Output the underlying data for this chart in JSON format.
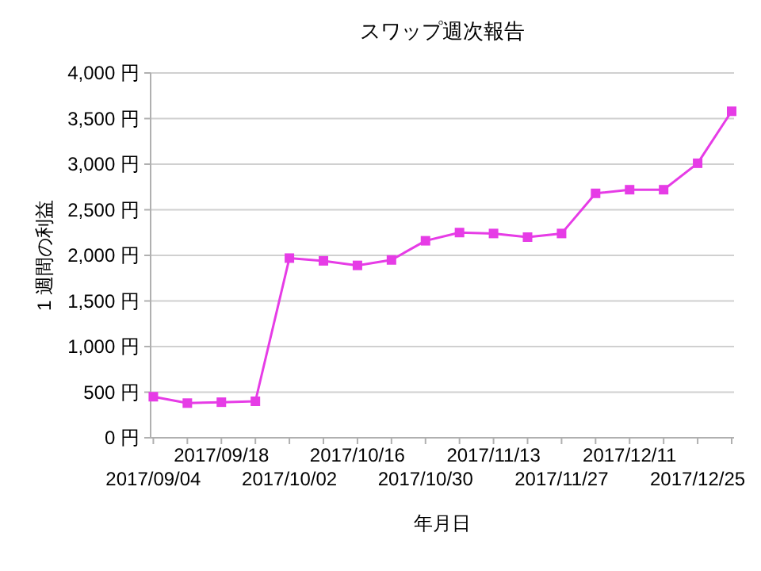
{
  "chart_data": {
    "type": "line",
    "title": "スワップ週次報告",
    "xlabel": "年月日",
    "ylabel": "1 週間の利益",
    "categories": [
      "2017/09/04",
      null,
      "2017/09/18",
      null,
      "2017/10/02",
      null,
      "2017/10/16",
      null,
      "2017/10/30",
      null,
      "2017/11/13",
      null,
      "2017/11/27",
      null,
      "2017/12/11",
      null,
      "2017/12/25",
      null
    ],
    "series": [
      {
        "color": "#e63ce6",
        "values": [
          450,
          380,
          390,
          400,
          1970,
          1940,
          1890,
          1950,
          2160,
          2250,
          2240,
          2200,
          2240,
          2680,
          2720,
          2720,
          3010,
          3580
        ]
      }
    ],
    "ylim": [
      0,
      4000
    ],
    "yticks": [
      {
        "value": 0,
        "label": "0 円"
      },
      {
        "value": 500,
        "label": "500 円"
      },
      {
        "value": 1000,
        "label": "1,000 円"
      },
      {
        "value": 1500,
        "label": "1,500 円"
      },
      {
        "value": 2000,
        "label": "2,000 円"
      },
      {
        "value": 2500,
        "label": "2,500 円"
      },
      {
        "value": 3000,
        "label": "3,000 円"
      },
      {
        "value": 3500,
        "label": "3,500 円"
      },
      {
        "value": 4000,
        "label": "4,000 円"
      }
    ],
    "grid": "y",
    "marker": "square",
    "line_style": "solid"
  }
}
